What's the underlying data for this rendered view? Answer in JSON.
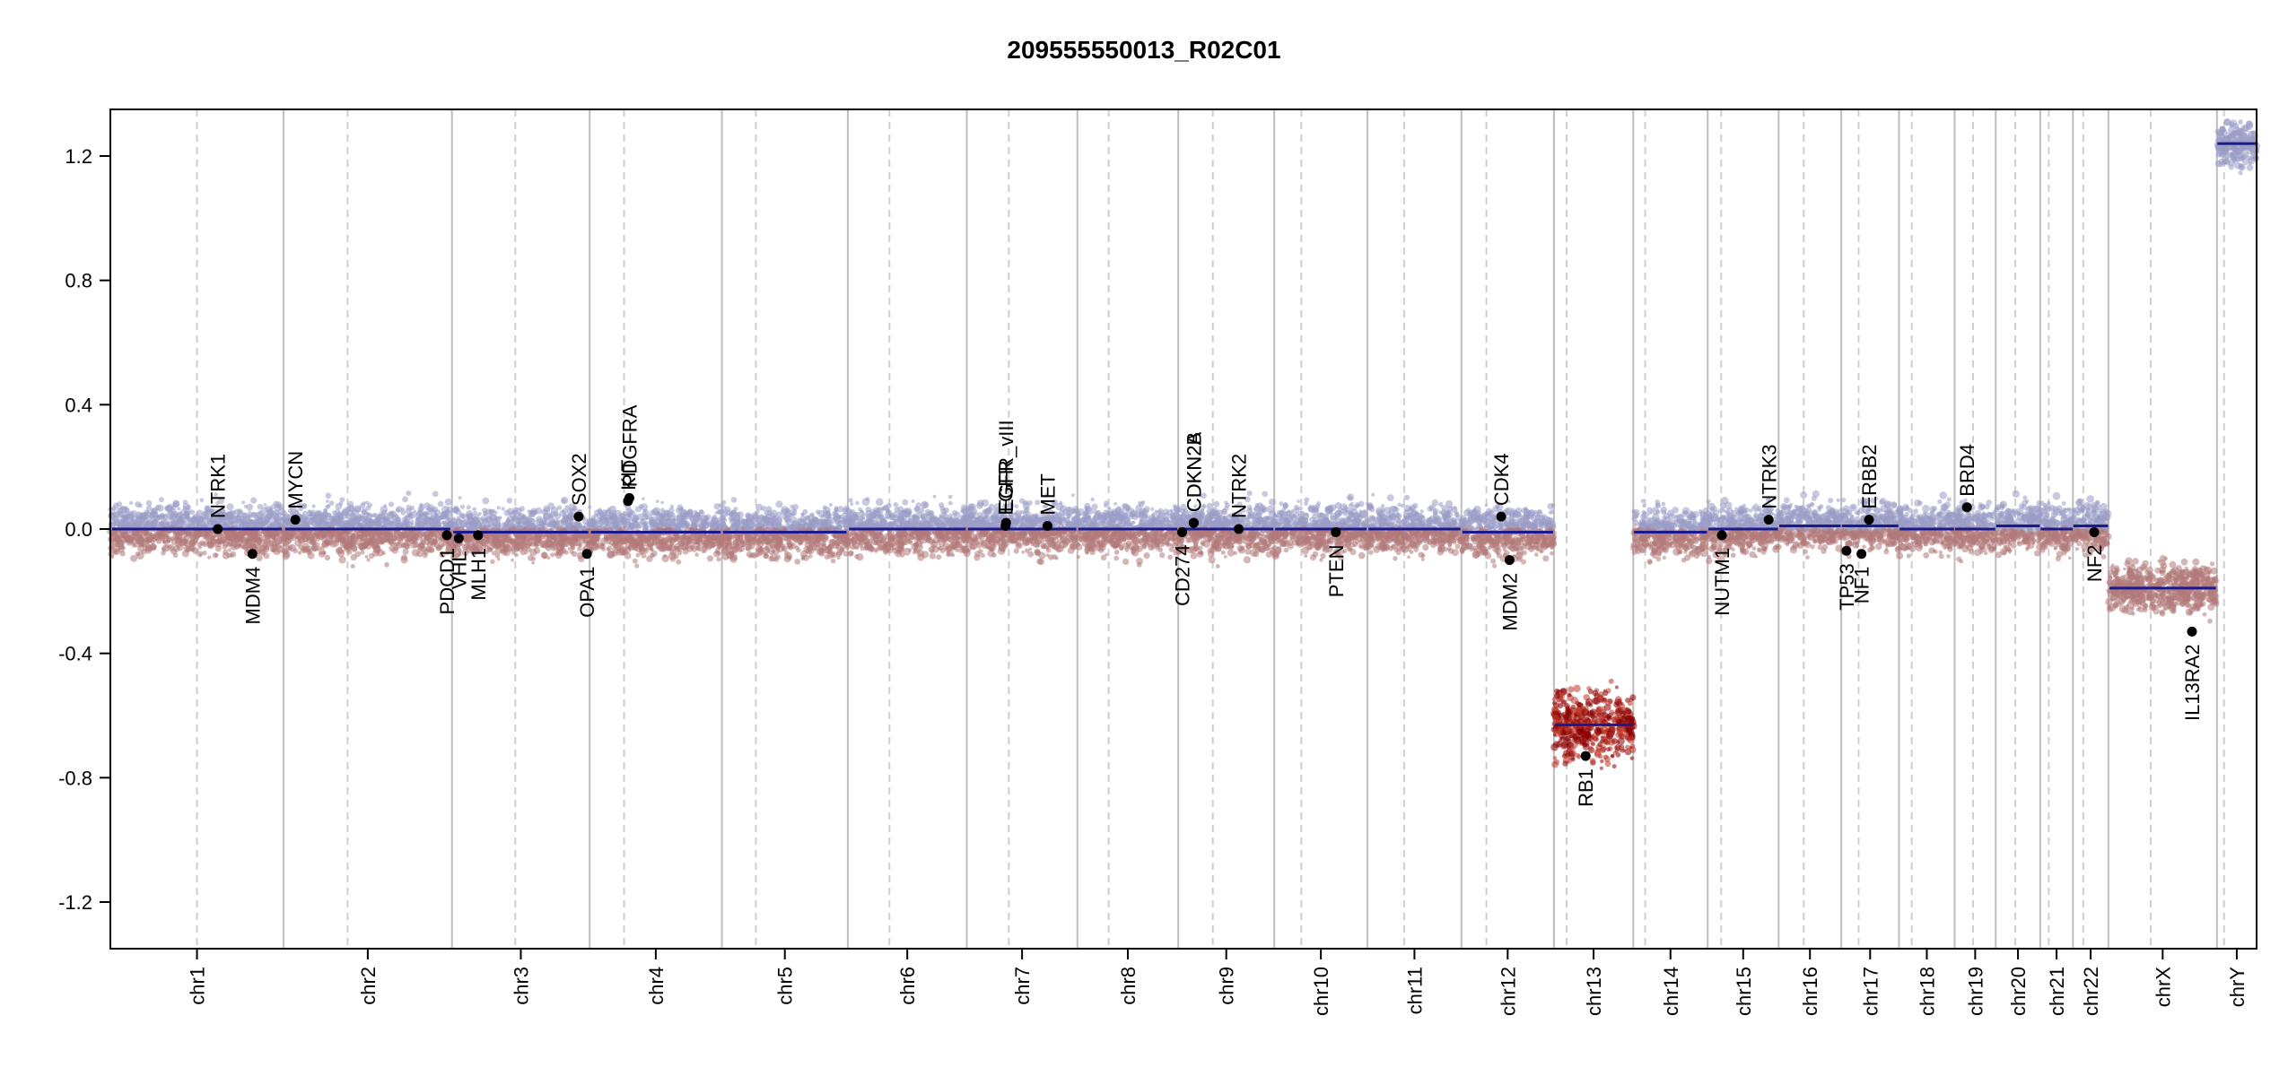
{
  "chart_data": {
    "type": "scatter",
    "title": "209555550013_R02C01",
    "xlabel": "",
    "ylabel": "",
    "ylim": [
      -1.35,
      1.35
    ],
    "y_ticks": [
      -1.2,
      -0.8,
      -0.4,
      0.0,
      0.4,
      0.8,
      1.2
    ],
    "y_tick_labels": [
      "-1.2",
      "-0.8",
      "-0.4",
      "0.0",
      "0.4",
      "0.8",
      "1.2"
    ],
    "grid": false,
    "colors": {
      "segment": "#1a1a8c",
      "gain_points": "#9a9cc6",
      "loss_points": "#b37a7a",
      "deep_loss_points": "#8b0000",
      "gene_marker": "#000000",
      "chrom_boundary": "#bdbdbd",
      "centromere": "#cfcfcf"
    },
    "chromosomes": [
      {
        "name": "chr1",
        "size": 249,
        "centromere": 0.5,
        "segment": 0.0
      },
      {
        "name": "chr2",
        "size": 242,
        "centromere": 0.38,
        "segment": 0.0
      },
      {
        "name": "chr3",
        "size": 198,
        "centromere": 0.46,
        "segment": -0.01
      },
      {
        "name": "chr4",
        "size": 190,
        "centromere": 0.26,
        "segment": -0.01
      },
      {
        "name": "chr5",
        "size": 181,
        "centromere": 0.27,
        "segment": -0.01
      },
      {
        "name": "chr6",
        "size": 171,
        "centromere": 0.35,
        "segment": 0.0
      },
      {
        "name": "chr7",
        "size": 159,
        "centromere": 0.38,
        "segment": 0.0
      },
      {
        "name": "chr8",
        "size": 145,
        "centromere": 0.31,
        "segment": 0.0
      },
      {
        "name": "chr9",
        "size": 138,
        "centromere": 0.36,
        "segment": 0.0
      },
      {
        "name": "chr10",
        "size": 134,
        "centromere": 0.29,
        "segment": 0.0
      },
      {
        "name": "chr11",
        "size": 135,
        "centromere": 0.39,
        "segment": 0.0
      },
      {
        "name": "chr12",
        "size": 133,
        "centromere": 0.27,
        "segment": -0.01
      },
      {
        "name": "chr13",
        "size": 114,
        "centromere": 0.16,
        "segment": -0.63
      },
      {
        "name": "chr14",
        "size": 107,
        "centromere": 0.16,
        "segment": -0.01
      },
      {
        "name": "chr15",
        "size": 102,
        "centromere": 0.19,
        "segment": 0.0
      },
      {
        "name": "chr16",
        "size": 90,
        "centromere": 0.4,
        "segment": 0.01
      },
      {
        "name": "chr17",
        "size": 83,
        "centromere": 0.3,
        "segment": 0.01
      },
      {
        "name": "chr18",
        "size": 80,
        "centromere": 0.23,
        "segment": 0.0
      },
      {
        "name": "chr19",
        "size": 59,
        "centromere": 0.45,
        "segment": 0.0
      },
      {
        "name": "chr20",
        "size": 64,
        "centromere": 0.44,
        "segment": 0.01
      },
      {
        "name": "chr21",
        "size": 47,
        "centromere": 0.26,
        "segment": 0.0
      },
      {
        "name": "chr22",
        "size": 51,
        "centromere": 0.29,
        "segment": 0.01
      },
      {
        "name": "chrX",
        "size": 156,
        "centromere": 0.39,
        "segment": -0.19
      },
      {
        "name": "chrY",
        "size": 57,
        "centromere": 0.18,
        "segment": 1.24
      }
    ],
    "genes": [
      {
        "name": "NTRK1",
        "chrom": "chr1",
        "pos": 0.62,
        "value": 0.0,
        "label_side": "above"
      },
      {
        "name": "MDM4",
        "chrom": "chr1",
        "pos": 0.82,
        "value": -0.08,
        "label_side": "below"
      },
      {
        "name": "MYCN",
        "chrom": "chr2",
        "pos": 0.07,
        "value": 0.03,
        "label_side": "above"
      },
      {
        "name": "PDCD1",
        "chrom": "chr2",
        "pos": 0.97,
        "value": -0.02,
        "label_side": "below"
      },
      {
        "name": "VHL",
        "chrom": "chr3",
        "pos": 0.05,
        "value": -0.03,
        "label_side": "below"
      },
      {
        "name": "MLH1",
        "chrom": "chr3",
        "pos": 0.19,
        "value": -0.02,
        "label_side": "below"
      },
      {
        "name": "SOX2",
        "chrom": "chr3",
        "pos": 0.92,
        "value": 0.04,
        "label_side": "above"
      },
      {
        "name": "OPA1",
        "chrom": "chr3",
        "pos": 0.98,
        "value": -0.08,
        "label_side": "below"
      },
      {
        "name": "KIT",
        "chrom": "chr4",
        "pos": 0.29,
        "value": 0.09,
        "label_side": "above"
      },
      {
        "name": "PDGFRA",
        "chrom": "chr4",
        "pos": 0.3,
        "value": 0.1,
        "label_side": "above"
      },
      {
        "name": "EGFR",
        "chrom": "chr7",
        "pos": 0.35,
        "value": 0.01,
        "label_side": "above"
      },
      {
        "name": "EGFR_vIII",
        "chrom": "chr7",
        "pos": 0.355,
        "value": 0.02,
        "label_side": "above"
      },
      {
        "name": "MET",
        "chrom": "chr7",
        "pos": 0.73,
        "value": 0.01,
        "label_side": "above"
      },
      {
        "name": "CD274",
        "chrom": "chr9",
        "pos": 0.04,
        "value": -0.01,
        "label_side": "below"
      },
      {
        "name": "CDKN2A",
        "chrom": "chr9",
        "pos": 0.16,
        "value": 0.02,
        "label_side": "above"
      },
      {
        "name": "CDKN2B",
        "chrom": "chr9",
        "pos": 0.162,
        "value": 0.02,
        "label_side": "above"
      },
      {
        "name": "NTRK2",
        "chrom": "chr9",
        "pos": 0.63,
        "value": 0.0,
        "label_side": "above"
      },
      {
        "name": "PTEN",
        "chrom": "chr10",
        "pos": 0.66,
        "value": -0.01,
        "label_side": "below"
      },
      {
        "name": "CDK4",
        "chrom": "chr12",
        "pos": 0.43,
        "value": 0.04,
        "label_side": "above"
      },
      {
        "name": "MDM2",
        "chrom": "chr12",
        "pos": 0.52,
        "value": -0.1,
        "label_side": "below"
      },
      {
        "name": "RB1",
        "chrom": "chr13",
        "pos": 0.4,
        "value": -0.73,
        "label_side": "below"
      },
      {
        "name": "NUTM1",
        "chrom": "chr15",
        "pos": 0.2,
        "value": -0.02,
        "label_side": "below"
      },
      {
        "name": "NTRK3",
        "chrom": "chr15",
        "pos": 0.86,
        "value": 0.03,
        "label_side": "above"
      },
      {
        "name": "TP53",
        "chrom": "chr17",
        "pos": 0.09,
        "value": -0.07,
        "label_side": "below"
      },
      {
        "name": "NF1",
        "chrom": "chr17",
        "pos": 0.35,
        "value": -0.08,
        "label_side": "below"
      },
      {
        "name": "ERBB2",
        "chrom": "chr17",
        "pos": 0.48,
        "value": 0.03,
        "label_side": "above"
      },
      {
        "name": "BRD4",
        "chrom": "chr19",
        "pos": 0.3,
        "value": 0.07,
        "label_side": "above"
      },
      {
        "name": "NF2",
        "chrom": "chr22",
        "pos": 0.6,
        "value": -0.01,
        "label_side": "below"
      },
      {
        "name": "IL13RA2",
        "chrom": "chrX",
        "pos": 0.77,
        "value": -0.33,
        "label_side": "below"
      }
    ]
  }
}
